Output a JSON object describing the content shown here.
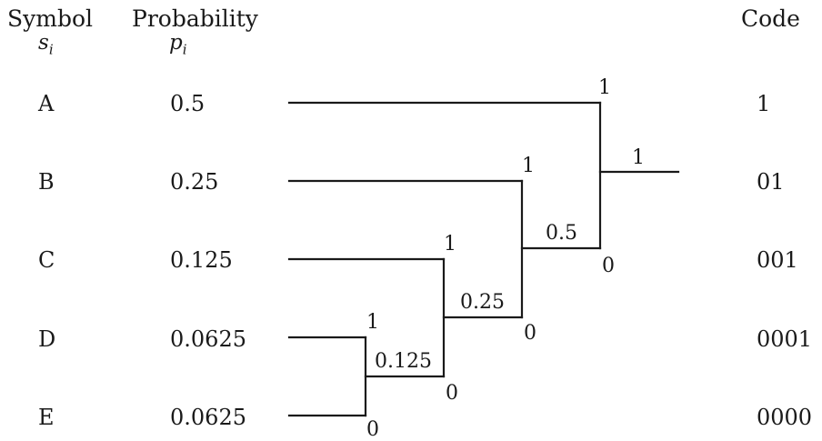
{
  "headers": {
    "symbol": "Symbol",
    "symbol_sub": "s",
    "symbol_sub_index": "i",
    "probability": "Probability",
    "probability_sub": "p",
    "probability_sub_index": "i",
    "code": "Code"
  },
  "rows": [
    {
      "symbol": "A",
      "probability": "0.5",
      "code": "1"
    },
    {
      "symbol": "B",
      "probability": "0.25",
      "code": "01"
    },
    {
      "symbol": "C",
      "probability": "0.125",
      "code": "001"
    },
    {
      "symbol": "D",
      "probability": "0.0625",
      "code": "0001"
    },
    {
      "symbol": "E",
      "probability": "0.0625",
      "code": "0000"
    }
  ],
  "tree": {
    "merges": [
      {
        "sum": "0.125",
        "upper_branch": "1",
        "lower_branch": "0"
      },
      {
        "sum": "0.25",
        "upper_branch": "1",
        "lower_branch": "0"
      },
      {
        "sum": "0.5",
        "upper_branch": "1",
        "lower_branch": "0"
      },
      {
        "sum": "1",
        "upper_branch": "1",
        "lower_branch": "0"
      }
    ]
  }
}
